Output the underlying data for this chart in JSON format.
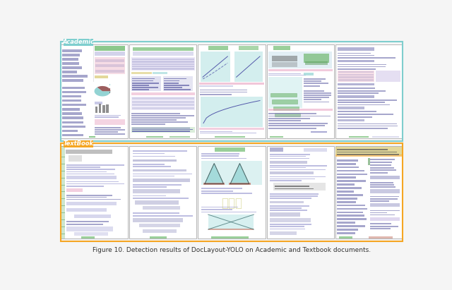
{
  "fig_width": 6.4,
  "fig_height": 4.11,
  "dpi": 100,
  "bg_color": "#f5f5f5",
  "caption": "Figure 10. Detection results of DocLayout-YOLO on Academic and Textbook documents.",
  "caption_fontsize": 6.5,
  "academic_label": "Academic",
  "textbook_label": "TextBook",
  "academic_border_color": "#7ecece",
  "textbook_border_color": "#f5a623",
  "academic_label_bg": "#7ecece",
  "textbook_label_bg": "#f5a623",
  "label_fontsize": 6.0,
  "page_border_color": "#aaaaaa",
  "colors": {
    "purple_light": "#a8a8d8",
    "purple_mid": "#8888bb",
    "purple_dark": "#6666aa",
    "blue_dark": "#5555aa",
    "pink_block": "#e8a0c0",
    "pink_light": "#f0c0d0",
    "teal_block": "#80cccc",
    "teal_light": "#a8dede",
    "green_block": "#70b870",
    "green_dark": "#559955",
    "yellow_block": "#d8c870",
    "red_block": "#cc7070",
    "dark_block": "#606060",
    "orange_label": "#f5a623",
    "light_blue": "#b8d8e8",
    "lavender": "#c0b0e0",
    "lavender_light": "#d8d0f0",
    "olive": "#808040",
    "gray_light": "#cccccc",
    "brown_red": "#c07060",
    "white": "#ffffff",
    "green_small": "#70bb70"
  }
}
